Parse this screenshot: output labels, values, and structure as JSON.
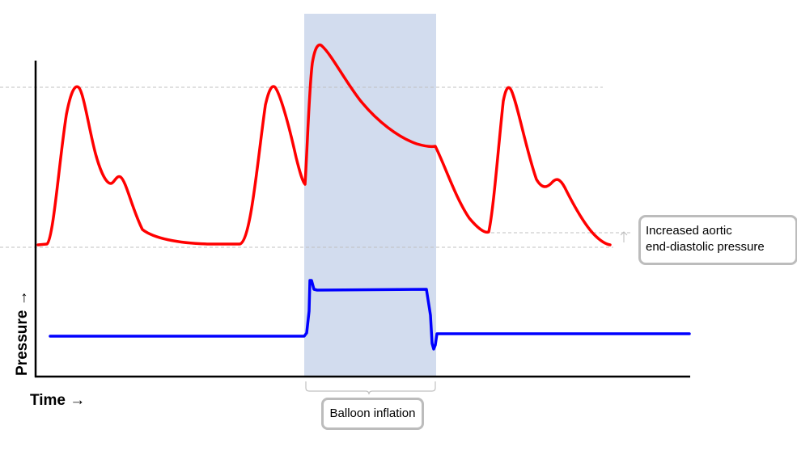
{
  "axes": {
    "y_label": "Pressure →",
    "x_label": "Time →"
  },
  "annotations": {
    "aortic_line1": "Increased aortic",
    "aortic_line2": "end-diastolic pressure",
    "balloon": "Balloon inflation"
  },
  "colors": {
    "aortic_pressure_trace": "#ff0000",
    "balloon_pressure_trace": "#0000ff",
    "inflation_shading": "#cdd8ec",
    "reference_lines": "#c0c0c0",
    "callout_border": "#bcbcbc"
  }
}
